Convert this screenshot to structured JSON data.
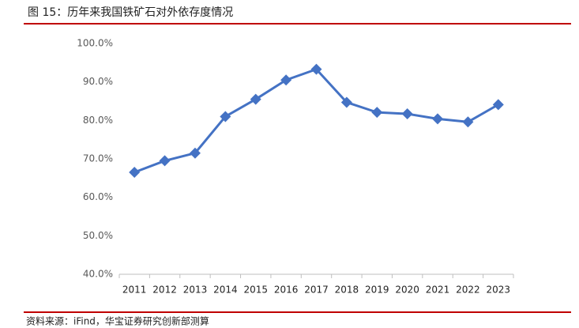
{
  "chart_data": {
    "type": "line",
    "title": "图 15：历年来我国铁矿石对外依存度情况",
    "source": "资料来源：iFind，华宝证券研究创新部测算",
    "categories": [
      "2011",
      "2012",
      "2013",
      "2014",
      "2015",
      "2016",
      "2017",
      "2018",
      "2019",
      "2020",
      "2021",
      "2022",
      "2023"
    ],
    "series": [
      {
        "color": "#4472c4",
        "values": [
          66.5,
          69.5,
          71.5,
          81.0,
          85.5,
          90.5,
          93.3,
          84.7,
          82.1,
          81.7,
          80.4,
          79.6,
          84.1
        ]
      }
    ],
    "ylim": [
      40,
      100
    ],
    "yticks": [
      {
        "value": 40,
        "label": "40.0%"
      },
      {
        "value": 50,
        "label": "50.0%"
      },
      {
        "value": 60,
        "label": "60.0%"
      },
      {
        "value": 70,
        "label": "70.0%"
      },
      {
        "value": 80,
        "label": "80.0%"
      },
      {
        "value": 90,
        "label": "90.0%"
      },
      {
        "value": 100,
        "label": "100.0%"
      }
    ],
    "grid": false,
    "accent_color": "#c00000"
  }
}
